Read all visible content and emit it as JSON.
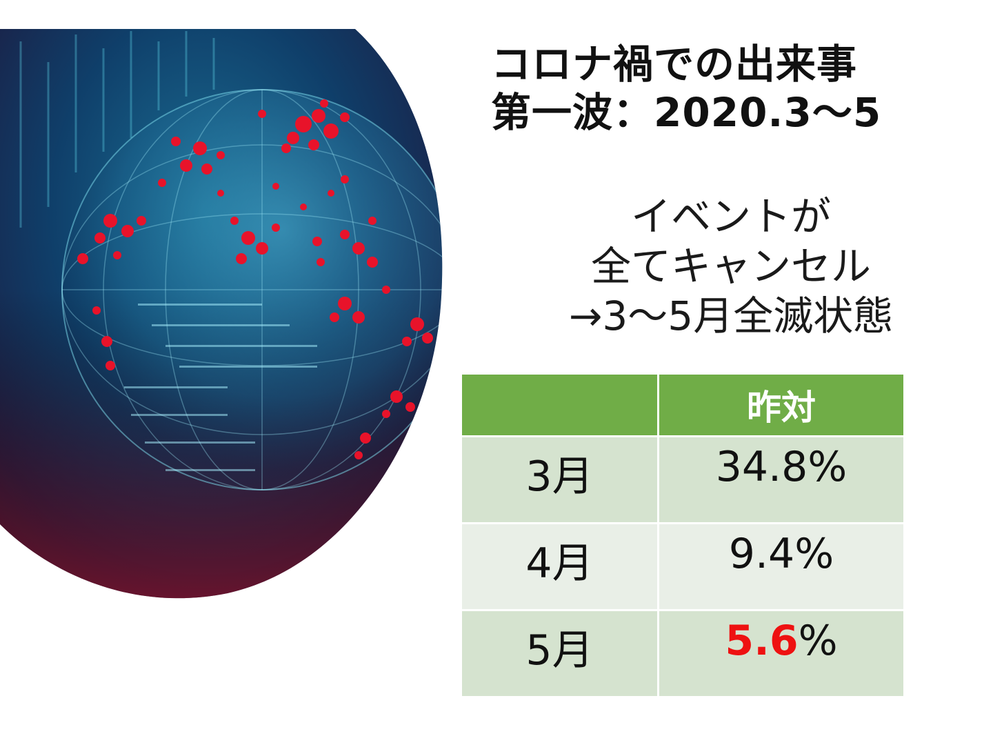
{
  "slide": {
    "title_line1": "コロナ禍での出来事",
    "title_line2": "第一波：2020.3〜5",
    "subtitle_lines": [
      "イベントが",
      "全てキャンセル",
      "→3〜5月全滅状態"
    ],
    "image_alt": "globe-with-red-outbreak-dots"
  },
  "table": {
    "header": [
      "",
      "昨対"
    ],
    "rows": [
      {
        "month": "3月",
        "value_highlight": "",
        "value": "34.8%"
      },
      {
        "month": "4月",
        "value_highlight": "",
        "value": "9.4%"
      },
      {
        "month": "5月",
        "value_highlight": "5.6",
        "value": "%"
      }
    ]
  },
  "colors": {
    "header_bg": "#70ad47",
    "row_odd": "#d5e3cf",
    "row_even": "#e9efe7",
    "highlight": "#ee1111"
  }
}
